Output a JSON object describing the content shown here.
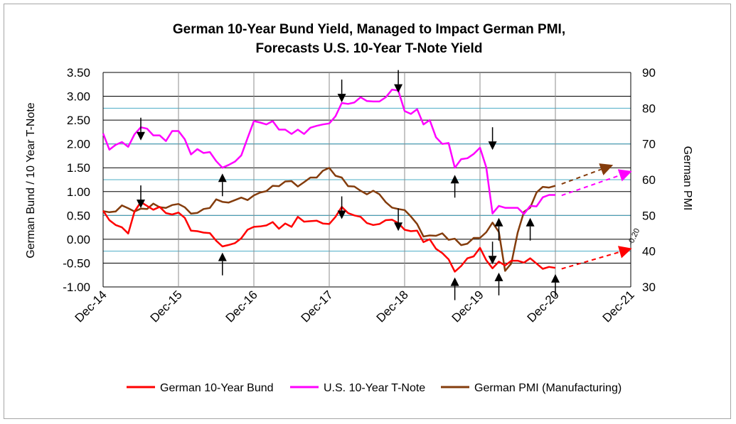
{
  "chart_data": {
    "type": "line",
    "title": "German 10-Year Bund Yield, Managed to Impact German PMI,",
    "subtitle": "Forecasts U.S. 10-Year T-Note Yield",
    "ylabel_left": "German Bund  /  10 Year T-Note",
    "ylabel_right": "German PMI",
    "x_tick_labels": [
      "Dec-14",
      "Dec-15",
      "Dec-16",
      "Dec-17",
      "Dec-18",
      "Dec-19",
      "Dec-20",
      "Dec-21"
    ],
    "x_range": [
      2014.917,
      2021.917
    ],
    "y_left_range": [
      -1.0,
      3.5
    ],
    "y_left_ticks": [
      "-1.00",
      "-0.50",
      "0.00",
      "0.50",
      "1.00",
      "1.50",
      "2.00",
      "2.50",
      "3.00",
      "3.50"
    ],
    "y_right_range": [
      30,
      90
    ],
    "y_right_ticks": [
      "30",
      "40",
      "50",
      "60",
      "70",
      "80",
      "90"
    ],
    "grid": true,
    "legend_position": "bottom",
    "series": [
      {
        "name": "German 10-Year Bund",
        "color": "#ff0000",
        "axis": "left",
        "x": [
          2014.917,
          2015.0,
          2015.083,
          2015.167,
          2015.25,
          2015.333,
          2015.417,
          2015.5,
          2015.583,
          2015.667,
          2015.75,
          2015.833,
          2015.917,
          2016.0,
          2016.083,
          2016.167,
          2016.25,
          2016.333,
          2016.417,
          2016.5,
          2016.583,
          2016.667,
          2016.75,
          2016.833,
          2016.917,
          2017.0,
          2017.083,
          2017.167,
          2017.25,
          2017.333,
          2017.417,
          2017.5,
          2017.583,
          2017.667,
          2017.75,
          2017.833,
          2017.917,
          2018.0,
          2018.083,
          2018.167,
          2018.25,
          2018.333,
          2018.417,
          2018.5,
          2018.583,
          2018.667,
          2018.75,
          2018.833,
          2018.917,
          2019.0,
          2019.083,
          2019.167,
          2019.25,
          2019.333,
          2019.417,
          2019.5,
          2019.583,
          2019.667,
          2019.75,
          2019.833,
          2019.917,
          2020.0,
          2020.083,
          2020.167,
          2020.25,
          2020.333,
          2020.417,
          2020.5,
          2020.583,
          2020.667,
          2020.75,
          2020.833,
          2020.917
        ],
        "values": [
          0.6,
          0.4,
          0.3,
          0.25,
          0.12,
          0.58,
          0.78,
          0.7,
          0.62,
          0.68,
          0.55,
          0.52,
          0.56,
          0.45,
          0.18,
          0.17,
          0.14,
          0.13,
          -0.03,
          -0.15,
          -0.12,
          -0.08,
          0.02,
          0.2,
          0.26,
          0.27,
          0.29,
          0.36,
          0.22,
          0.33,
          0.26,
          0.47,
          0.37,
          0.38,
          0.39,
          0.33,
          0.32,
          0.47,
          0.68,
          0.55,
          0.5,
          0.47,
          0.34,
          0.3,
          0.32,
          0.4,
          0.41,
          0.34,
          0.2,
          0.17,
          0.18,
          -0.06,
          0.0,
          -0.2,
          -0.29,
          -0.42,
          -0.68,
          -0.56,
          -0.4,
          -0.36,
          -0.18,
          -0.44,
          -0.61,
          -0.47,
          -0.55,
          -0.45,
          -0.45,
          -0.49,
          -0.4,
          -0.51,
          -0.62,
          -0.58,
          -0.6
        ]
      },
      {
        "name": "U.S. 10-Year T-Note",
        "color": "#ff00ff",
        "axis": "left",
        "x": [
          2014.917,
          2015.0,
          2015.083,
          2015.167,
          2015.25,
          2015.333,
          2015.417,
          2015.5,
          2015.583,
          2015.667,
          2015.75,
          2015.833,
          2015.917,
          2016.0,
          2016.083,
          2016.167,
          2016.25,
          2016.333,
          2016.417,
          2016.5,
          2016.583,
          2016.667,
          2016.75,
          2016.833,
          2016.917,
          2017.0,
          2017.083,
          2017.167,
          2017.25,
          2017.333,
          2017.417,
          2017.5,
          2017.583,
          2017.667,
          2017.75,
          2017.833,
          2017.917,
          2018.0,
          2018.083,
          2018.167,
          2018.25,
          2018.333,
          2018.417,
          2018.5,
          2018.583,
          2018.667,
          2018.75,
          2018.833,
          2018.917,
          2019.0,
          2019.083,
          2019.167,
          2019.25,
          2019.333,
          2019.417,
          2019.5,
          2019.583,
          2019.667,
          2019.75,
          2019.833,
          2019.917,
          2020.0,
          2020.083,
          2020.167,
          2020.25,
          2020.333,
          2020.417,
          2020.5,
          2020.583,
          2020.667,
          2020.75,
          2020.833,
          2020.917
        ],
        "values": [
          2.22,
          1.88,
          1.98,
          2.04,
          1.94,
          2.2,
          2.35,
          2.32,
          2.18,
          2.18,
          2.06,
          2.27,
          2.27,
          2.1,
          1.78,
          1.89,
          1.81,
          1.83,
          1.64,
          1.5,
          1.56,
          1.63,
          1.76,
          2.12,
          2.48,
          2.45,
          2.41,
          2.48,
          2.3,
          2.3,
          2.21,
          2.3,
          2.21,
          2.34,
          2.38,
          2.41,
          2.43,
          2.58,
          2.86,
          2.84,
          2.87,
          2.98,
          2.9,
          2.89,
          2.89,
          2.98,
          3.14,
          3.12,
          2.69,
          2.63,
          2.73,
          2.41,
          2.5,
          2.14,
          2.0,
          2.02,
          1.5,
          1.68,
          1.7,
          1.79,
          1.92,
          1.51,
          0.54,
          0.7,
          0.66,
          0.66,
          0.66,
          0.53,
          0.7,
          0.69,
          0.88,
          0.93,
          0.93
        ]
      },
      {
        "name": "German PMI (Manufacturing)",
        "color": "#843c0c",
        "axis": "right",
        "x": [
          2014.917,
          2015.0,
          2015.083,
          2015.167,
          2015.25,
          2015.333,
          2015.417,
          2015.5,
          2015.583,
          2015.667,
          2015.75,
          2015.833,
          2015.917,
          2016.0,
          2016.083,
          2016.167,
          2016.25,
          2016.333,
          2016.417,
          2016.5,
          2016.583,
          2016.667,
          2016.75,
          2016.833,
          2016.917,
          2017.0,
          2017.083,
          2017.167,
          2017.25,
          2017.333,
          2017.417,
          2017.5,
          2017.583,
          2017.667,
          2017.75,
          2017.833,
          2017.917,
          2018.0,
          2018.083,
          2018.167,
          2018.25,
          2018.333,
          2018.417,
          2018.5,
          2018.583,
          2018.667,
          2018.75,
          2018.833,
          2018.917,
          2019.0,
          2019.083,
          2019.167,
          2019.25,
          2019.333,
          2019.417,
          2019.5,
          2019.583,
          2019.667,
          2019.75,
          2019.833,
          2019.917,
          2020.0,
          2020.083,
          2020.167,
          2020.25,
          2020.333,
          2020.417,
          2020.5,
          2020.583,
          2020.667,
          2020.75,
          2020.833,
          2020.917
        ],
        "values": [
          51.2,
          50.9,
          51.1,
          52.8,
          52.0,
          51.1,
          51.9,
          51.8,
          53.3,
          52.3,
          52.1,
          52.9,
          53.2,
          52.3,
          50.5,
          50.7,
          51.8,
          52.1,
          54.5,
          53.8,
          53.6,
          54.3,
          55.0,
          54.3,
          55.6,
          56.4,
          56.8,
          58.3,
          58.2,
          59.5,
          59.6,
          58.1,
          59.3,
          60.6,
          60.6,
          62.5,
          63.3,
          61.1,
          60.6,
          58.2,
          58.1,
          56.9,
          55.9,
          56.9,
          55.9,
          53.7,
          52.2,
          51.8,
          51.5,
          49.7,
          47.6,
          44.1,
          44.4,
          44.3,
          45.0,
          43.2,
          43.5,
          41.7,
          42.1,
          43.7,
          43.7,
          45.3,
          48.0,
          45.4,
          34.5,
          36.6,
          45.2,
          51.0,
          52.2,
          56.4,
          58.0,
          57.8,
          58.3
        ]
      }
    ],
    "forecasts": [
      {
        "series": "German 10-Year Bund",
        "color": "#ff0000",
        "axis": "left",
        "from": [
          2021.0,
          -0.62
        ],
        "to": [
          2021.917,
          -0.2
        ],
        "label": "-0.20"
      },
      {
        "series": "U.S. 10-Year T-Note",
        "color": "#ff00ff",
        "axis": "left",
        "from": [
          2021.0,
          0.92
        ],
        "to": [
          2021.917,
          1.42
        ]
      },
      {
        "series": "German PMI (Manufacturing)",
        "color": "#843c0c",
        "axis": "right",
        "from": [
          2021.0,
          58.8
        ],
        "to": [
          2021.667,
          64.0
        ]
      }
    ],
    "annotations": {
      "arrows_down": [
        {
          "x": 2015.417,
          "y": 2.55
        },
        {
          "x": 2015.417,
          "y": 1.13
        },
        {
          "x": 2018.083,
          "y": 3.35
        },
        {
          "x": 2018.083,
          "y": 0.9
        },
        {
          "x": 2018.833,
          "y": 3.55
        },
        {
          "x": 2018.833,
          "y": 0.65
        },
        {
          "x": 2020.083,
          "y": 2.35
        },
        {
          "x": 2020.083,
          "y": -0.05
        }
      ],
      "arrows_up": [
        {
          "x": 2016.5,
          "y": 1.38
        },
        {
          "x": 2016.5,
          "y": -0.28
        },
        {
          "x": 2019.583,
          "y": 1.35
        },
        {
          "x": 2019.583,
          "y": -0.8
        },
        {
          "x": 2020.167,
          "y": 0.45
        },
        {
          "x": 2020.167,
          "y": -0.7
        },
        {
          "x": 2020.583,
          "y": 0.45
        },
        {
          "x": 2020.917,
          "y": -0.73
        }
      ]
    }
  }
}
